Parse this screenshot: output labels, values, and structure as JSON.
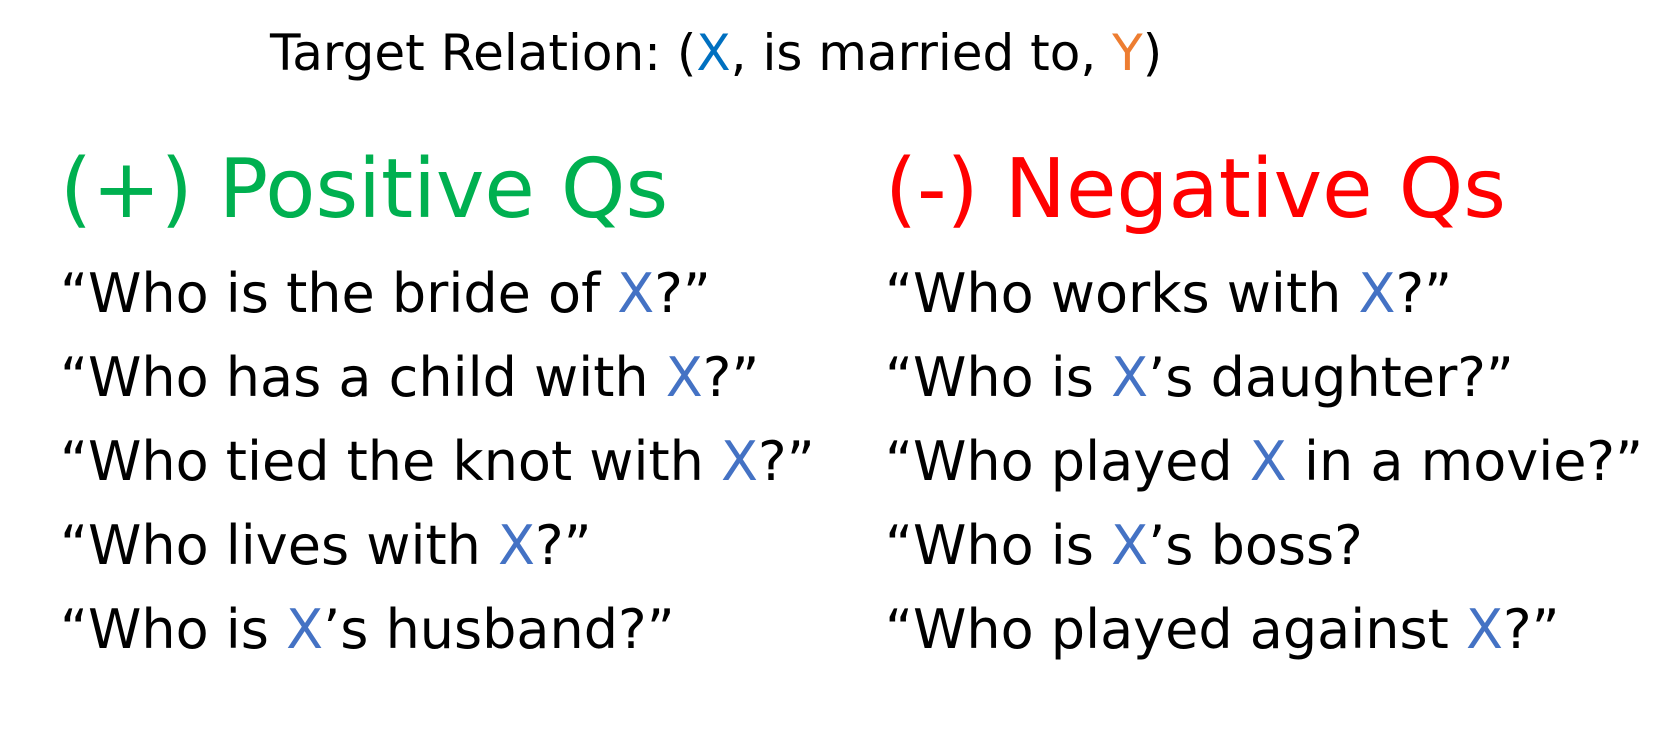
{
  "header": {
    "prefix": "Target Relation: (",
    "x": "X",
    "middle": ", is married to, ",
    "y": "Y",
    "suffix": ")"
  },
  "colors": {
    "x_var": "#0070c0",
    "y_var": "#ed7d31",
    "x_in_question": "#4472c4",
    "positive": "#00b050",
    "negative": "#ff0000"
  },
  "positive": {
    "heading": "(+) Positive Qs",
    "questions": [
      {
        "pre": "“Who is the bride of ",
        "x": "X",
        "post": "?”"
      },
      {
        "pre": "“Who has a child with ",
        "x": "X",
        "post": "?”"
      },
      {
        "pre": "“Who tied the knot with ",
        "x": "X",
        "post": "?”"
      },
      {
        "pre": "“Who lives with ",
        "x": "X",
        "post": "?”"
      },
      {
        "pre": "“Who is ",
        "x": "X",
        "post": "’s husband?”"
      }
    ]
  },
  "negative": {
    "heading": "(-) Negative Qs",
    "questions": [
      {
        "pre": "“Who works with ",
        "x": "X",
        "post": "?”"
      },
      {
        "pre": "“Who is ",
        "x": "X",
        "post": "’s daughter?”"
      },
      {
        "pre": "“Who played ",
        "x": "X",
        "post": " in a movie?”"
      },
      {
        "pre": "“Who is ",
        "x": "X",
        "post": "’s boss?"
      },
      {
        "pre": "“Who played against ",
        "x": "X",
        "post": "?”"
      }
    ]
  }
}
